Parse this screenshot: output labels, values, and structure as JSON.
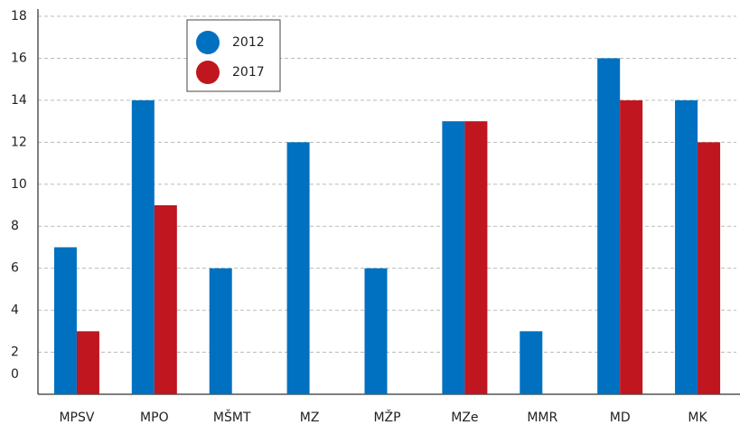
{
  "chart_data": {
    "type": "bar",
    "categories": [
      "MPSV",
      "MPO",
      "MŠMT",
      "MZ",
      "MŽP",
      "MZe",
      "MMR",
      "MD",
      "MK"
    ],
    "series": [
      {
        "name": "2012",
        "color": "#0070c0",
        "values": [
          7,
          14,
          6,
          12,
          6,
          13,
          3,
          16,
          14
        ]
      },
      {
        "name": "2017",
        "color": "#c0161f",
        "values": [
          3,
          9,
          0,
          0,
          0,
          13,
          0,
          14,
          12
        ]
      }
    ],
    "ylim": [
      0,
      18
    ],
    "yticks": [
      0,
      2,
      4,
      6,
      8,
      10,
      12,
      14,
      16,
      18
    ],
    "grid": true,
    "legend": "upper left"
  }
}
